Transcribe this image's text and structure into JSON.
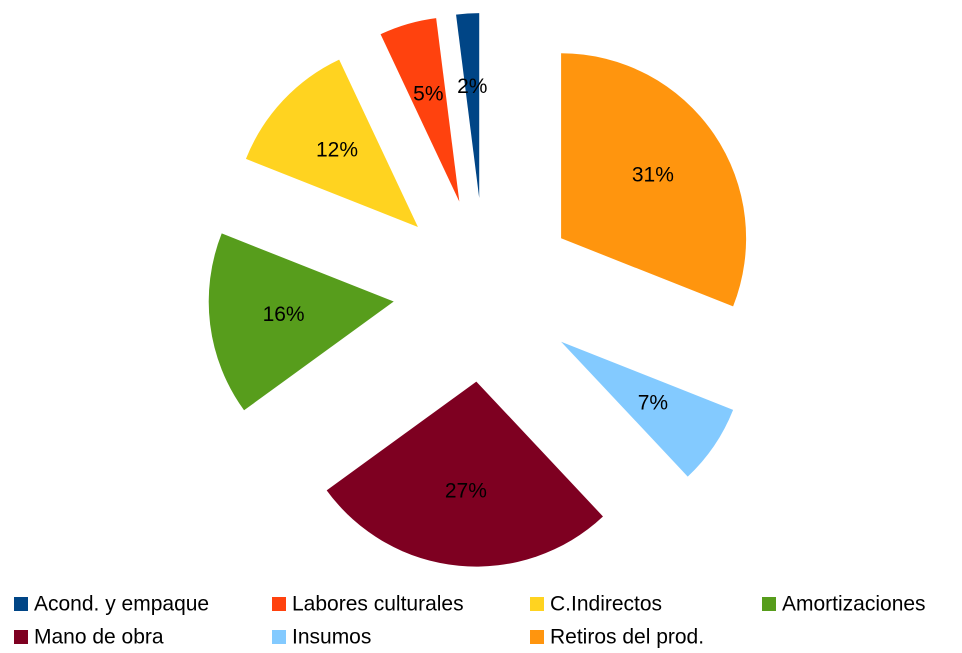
{
  "chart_data": {
    "type": "pie",
    "categories": [
      "Acond. y empaque",
      "Labores culturales",
      "C.Indirectos",
      "Amortizaciones",
      "Mano de obra",
      "Insumos",
      "Retiros del prod."
    ],
    "values": [
      2,
      5,
      12,
      16,
      27,
      7,
      31
    ],
    "value_labels": [
      "2%",
      "5%",
      "12%",
      "16%",
      "27%",
      "7%",
      "31%"
    ],
    "colors": [
      "#004586",
      "#ff420e",
      "#ffd320",
      "#579d1c",
      "#7e0021",
      "#83caff",
      "#ff950e"
    ],
    "legend": "bottom"
  }
}
